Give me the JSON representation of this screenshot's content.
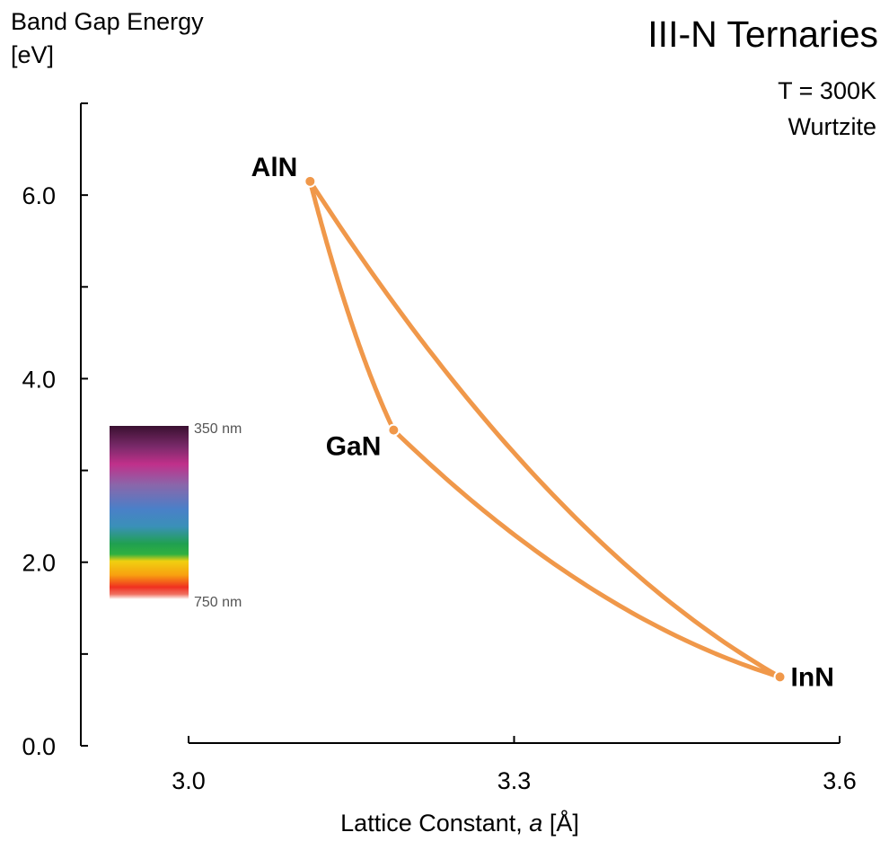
{
  "chart_data": {
    "type": "line",
    "title": "III-N Ternaries",
    "conditions": [
      "T = 300K",
      "Wurtzite"
    ],
    "ylabel_line1": "Band Gap Energy",
    "ylabel_line2": "[eV]",
    "xlabel_prefix": "Lattice Constant, ",
    "xlabel_symbol": "a",
    "xlabel_unit": " [Å]",
    "xlim": [
      3.0,
      3.6
    ],
    "ylim": [
      0.0,
      7.0
    ],
    "x_ticks": [
      3.0,
      3.3,
      3.6
    ],
    "x_tick_labels": [
      "3.0",
      "3.3",
      "3.6"
    ],
    "y_ticks_major": [
      0.0,
      2.0,
      4.0,
      6.0
    ],
    "y_tick_labels": [
      "0.0",
      "2.0",
      "4.0",
      "6.0"
    ],
    "y_ticks_minor": [
      1.0,
      3.0,
      5.0,
      7.0
    ],
    "grid": false,
    "line_color": "#f0984a",
    "points": [
      {
        "label": "AlN",
        "x": 3.112,
        "y": 6.15
      },
      {
        "label": "GaN",
        "x": 3.189,
        "y": 3.44
      },
      {
        "label": "InN",
        "x": 3.545,
        "y": 0.75
      }
    ],
    "series": [
      {
        "from": "AlN",
        "to": "GaN",
        "bowing": 0.8
      },
      {
        "from": "GaN",
        "to": "InN",
        "bowing": 1.4
      },
      {
        "from": "AlN",
        "to": "InN",
        "bowing": 2.5
      }
    ],
    "spectrum_legend": {
      "top_label": "350 nm",
      "bottom_label": "750 nm",
      "top_ev": 3.54,
      "bottom_ev": 1.65
    }
  }
}
